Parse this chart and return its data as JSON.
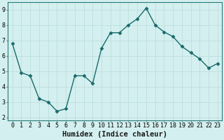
{
  "x": [
    0,
    1,
    2,
    3,
    4,
    5,
    6,
    7,
    8,
    9,
    10,
    11,
    12,
    13,
    14,
    15,
    16,
    17,
    18,
    19,
    20,
    21,
    22,
    23
  ],
  "y": [
    6.8,
    4.9,
    4.7,
    3.2,
    3.0,
    2.4,
    2.55,
    4.7,
    4.7,
    4.2,
    6.5,
    7.5,
    7.5,
    8.0,
    8.4,
    9.1,
    8.0,
    7.55,
    7.25,
    6.6,
    6.2,
    5.8,
    5.2,
    5.5
  ],
  "line_color": "#1a6b6b",
  "marker_color": "#1a6b6b",
  "bg_color": "#d4efef",
  "grid_color": "#b8dada",
  "xlabel": "Humidex (Indice chaleur)",
  "xlim": [
    -0.5,
    23.5
  ],
  "ylim": [
    1.8,
    9.5
  ],
  "yticks": [
    2,
    3,
    4,
    5,
    6,
    7,
    8,
    9
  ],
  "xticks": [
    0,
    1,
    2,
    3,
    4,
    5,
    6,
    7,
    8,
    9,
    10,
    11,
    12,
    13,
    14,
    15,
    16,
    17,
    18,
    19,
    20,
    21,
    22,
    23
  ],
  "xlabel_fontsize": 7.5,
  "tick_fontsize": 6,
  "linewidth": 1.0,
  "markersize": 2.5
}
